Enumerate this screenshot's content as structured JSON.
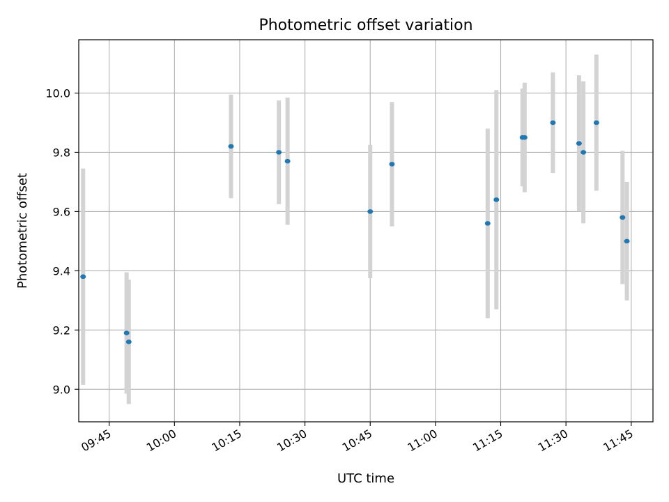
{
  "chart_data": {
    "type": "scatter",
    "title": "Photometric offset variation",
    "xlabel": "UTC time",
    "ylabel": "Photometric offset",
    "x_ticks": [
      "09:45",
      "10:00",
      "10:15",
      "10:30",
      "10:45",
      "11:00",
      "11:15",
      "11:30",
      "11:45"
    ],
    "y_ticks": [
      "9.0",
      "9.2",
      "9.4",
      "9.6",
      "9.8",
      "10.0"
    ],
    "xlim": [
      "09:38",
      "11:50"
    ],
    "ylim": [
      8.89,
      10.18
    ],
    "grid": true,
    "colors": {
      "points": "#1f77b4",
      "errorbars": "#d3d3d3",
      "grid": "#b0b0b0"
    },
    "points": [
      {
        "x": "09:39",
        "y": 9.38,
        "err": 0.365
      },
      {
        "x": "09:49",
        "y": 9.19,
        "err": 0.205
      },
      {
        "x": "09:49:30",
        "y": 9.16,
        "err": 0.21
      },
      {
        "x": "10:13",
        "y": 9.82,
        "err": 0.175
      },
      {
        "x": "10:24",
        "y": 9.8,
        "err": 0.175
      },
      {
        "x": "10:26",
        "y": 9.77,
        "err": 0.215
      },
      {
        "x": "10:45",
        "y": 9.6,
        "err": 0.225
      },
      {
        "x": "10:50",
        "y": 9.76,
        "err": 0.21
      },
      {
        "x": "11:12",
        "y": 9.56,
        "err": 0.32
      },
      {
        "x": "11:14",
        "y": 9.64,
        "err": 0.37
      },
      {
        "x": "11:20",
        "y": 9.85,
        "err": 0.165
      },
      {
        "x": "11:20:30",
        "y": 9.85,
        "err": 0.185
      },
      {
        "x": "11:27",
        "y": 9.9,
        "err": 0.17
      },
      {
        "x": "11:33",
        "y": 9.83,
        "err": 0.23
      },
      {
        "x": "11:34",
        "y": 9.8,
        "err": 0.24
      },
      {
        "x": "11:37",
        "y": 9.9,
        "err": 0.23
      },
      {
        "x": "11:43",
        "y": 9.58,
        "err": 0.225
      },
      {
        "x": "11:44",
        "y": 9.5,
        "err": 0.2
      }
    ]
  }
}
